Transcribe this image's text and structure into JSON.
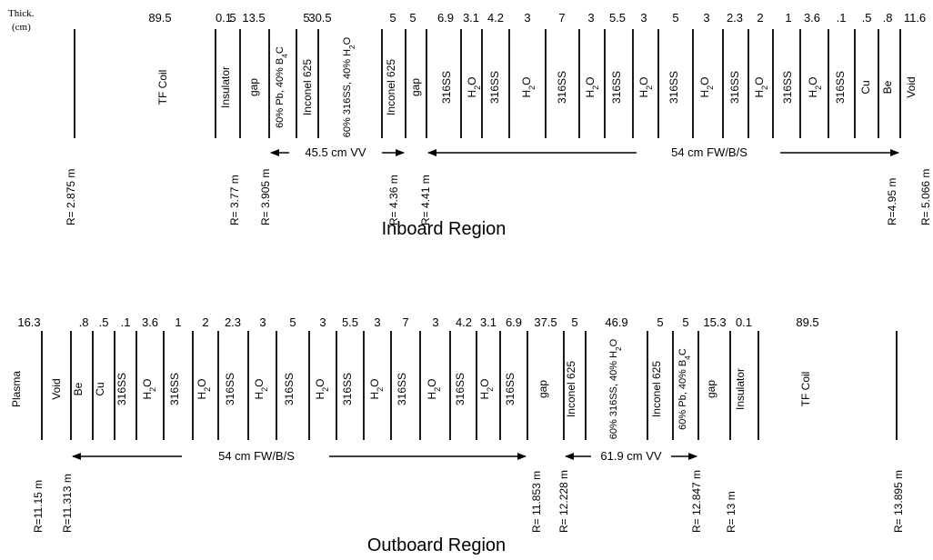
{
  "corner_label": {
    "line1": "Thick.",
    "line2": "(cm)"
  },
  "inboard": {
    "title": "Inboard Region",
    "thicknesses": [
      "89.5",
      "0.1",
      "13.5",
      "5",
      "5",
      "30.5",
      "5",
      "5",
      "6.9",
      "3.1",
      "4.2",
      "3",
      "7",
      "3",
      "5.5",
      "3",
      "5",
      "3",
      "2.3",
      "2",
      "1",
      "3.6",
      ".1",
      ".5",
      ".8",
      "11.6"
    ],
    "layers": [
      "TF Coil",
      "Insulator",
      "gap",
      "60% Pb, 40% B4C",
      "Inconel 625",
      "60% 316SS, 40% H2O",
      "Inconel 625",
      "gap",
      "316SS",
      "H2O",
      "316SS",
      "H2O",
      "316SS",
      "H2O",
      "316SS",
      "H2O",
      "316SS",
      "H2O",
      "316SS",
      "H2O",
      "316SS",
      "H2O",
      "316SS",
      "Cu",
      "Be",
      "Void"
    ],
    "radii": [
      "R= 2.875 m",
      "R= 3.77 m",
      "R= 3.905 m",
      "R= 4.36 m",
      "R= 4.41 m",
      "R=4.95 m",
      "R= 5.066 m"
    ],
    "spans": [
      "45.5 cm VV",
      "54  cm FW/B/S"
    ]
  },
  "outboard": {
    "title": "Outboard Region",
    "thicknesses": [
      "16.3",
      ".8",
      ".5",
      ".1",
      "3.6",
      "1",
      "2",
      "2.3",
      "3",
      "5",
      "3",
      "5.5",
      "3",
      "7",
      "3",
      "4.2",
      "3.1",
      "6.9",
      "37.5",
      "5",
      "46.9",
      "5",
      "5",
      "15.3",
      "0.1",
      "89.5"
    ],
    "layers": [
      "Plasma",
      "Void",
      "Be",
      "Cu",
      "316SS",
      "H2O",
      "316SS",
      "H2O",
      "316SS",
      "H2O",
      "316SS",
      "H2O",
      "316SS",
      "H2O",
      "316SS",
      "H2O",
      "316SS",
      "H2O",
      "316SS",
      "gap",
      "Inconel 625",
      "60% 316SS, 40% H2O",
      "Inconel 625",
      "60% Pb, 40% B4C",
      "gap",
      "Insulator",
      "TF Coil"
    ],
    "radii": [
      "R=11.15 m",
      "R=11.313 m",
      "R= 11.853 m",
      "R= 12.228 m",
      "R= 12.847 m",
      "R= 13 m",
      "R= 13.895 m"
    ],
    "spans": [
      "54  cm FW/B/S",
      "61.9 cm VV"
    ]
  }
}
